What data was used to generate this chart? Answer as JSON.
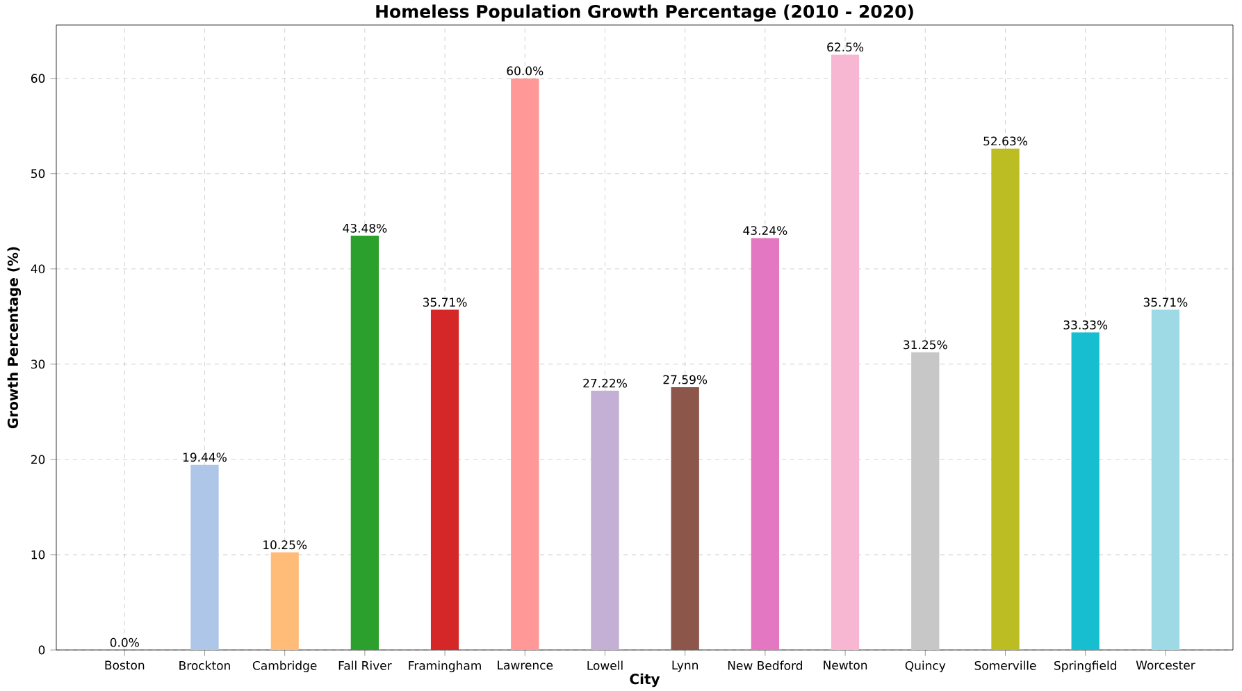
{
  "chart_data": {
    "type": "bar",
    "title": "Homeless Population Growth Percentage (2010 - 2020)",
    "xlabel": "City",
    "ylabel": "Growth Percentage (%)",
    "categories": [
      "Boston",
      "Brockton",
      "Cambridge",
      "Fall River",
      "Framingham",
      "Lawrence",
      "Lowell",
      "Lynn",
      "New Bedford",
      "Newton",
      "Quincy",
      "Somerville",
      "Springfield",
      "Worcester"
    ],
    "values": [
      0.0,
      19.44,
      10.25,
      43.48,
      35.71,
      60.0,
      27.22,
      27.59,
      43.24,
      62.5,
      31.25,
      52.63,
      33.33,
      35.71
    ],
    "value_labels": [
      "0.0%",
      "19.44%",
      "10.25%",
      "43.48%",
      "35.71%",
      "60.0%",
      "27.22%",
      "27.59%",
      "43.24%",
      "62.5%",
      "31.25%",
      "52.63%",
      "33.33%",
      "35.71%"
    ],
    "colors": [
      "#1f77b4",
      "#aec7e8",
      "#ffbb78",
      "#2ca02c",
      "#d62728",
      "#ff9896",
      "#c5b0d5",
      "#8c564b",
      "#e377c2",
      "#f7b6d2",
      "#c7c7c7",
      "#bcbd22",
      "#17becf",
      "#9edae5"
    ],
    "ylim": [
      0,
      65.6
    ],
    "yticks": [
      0,
      10,
      20,
      30,
      40,
      50,
      60
    ],
    "grid": true
  }
}
